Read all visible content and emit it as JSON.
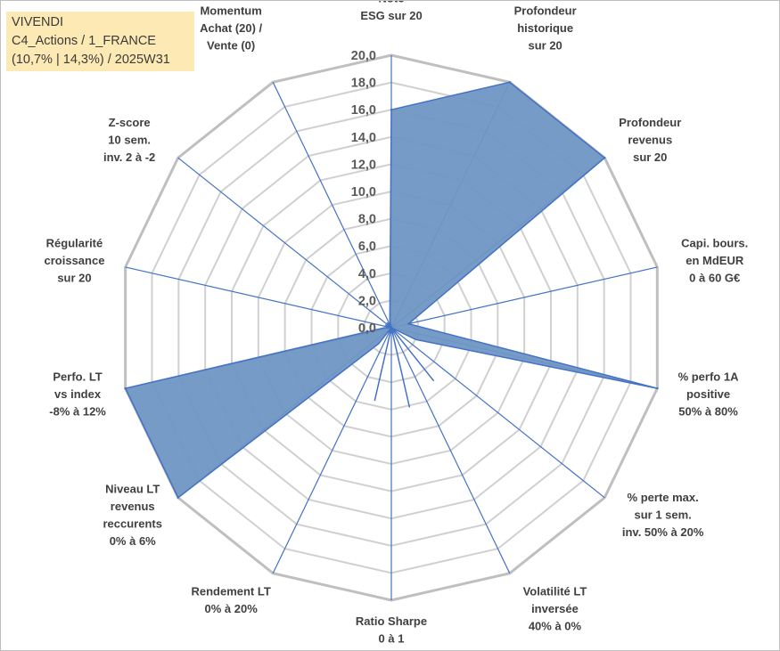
{
  "info": {
    "company": "VIVENDI",
    "portfolio": "C4_Actions / 1_FRANCE",
    "details": "(10,7% | 14,3%) / 2025W31"
  },
  "chart_data": {
    "type": "radar",
    "title": "",
    "rmax": 20,
    "tick_step": 2,
    "tick_labels": [
      "0,0",
      "2,0",
      "4,0",
      "6,0",
      "8,0",
      "10,0",
      "12,0",
      "14,0",
      "16,0",
      "18,0",
      "20,0"
    ],
    "grid_rings": 10,
    "fill_color": "#7096c4",
    "stroke_color": "#4472c4",
    "grid_color": "#d0d0d0",
    "axes": [
      {
        "label": [
          "Note",
          "ESG sur 20"
        ],
        "value": 16.0
      },
      {
        "label": [
          "Profondeur",
          "historique",
          "sur 20"
        ],
        "value": 20.0
      },
      {
        "label": [
          "Profondeur",
          "revenus",
          "sur 20"
        ],
        "value": 20.0
      },
      {
        "label": [
          "Capi. bours.",
          "en MdEUR",
          "0 à 60 G€"
        ],
        "value": 1.3
      },
      {
        "label": [
          "% perfo 1A",
          "positive",
          "50% à 80%"
        ],
        "value": 20.0
      },
      {
        "label": [
          "% perte max.",
          "sur 1 sem.",
          "inv. 50% à 20%"
        ],
        "value": 0.0
      },
      {
        "label": [
          "Volatilité LT",
          "inversée",
          "40% à 0%"
        ],
        "value": 0.0
      },
      {
        "label": [
          "Ratio Sharpe",
          "0 à 1"
        ],
        "value": 0.0
      },
      {
        "label": [
          "Rendement LT",
          "0% à 20%"
        ],
        "value": 0.0
      },
      {
        "label": [
          "Niveau LT",
          "revenus",
          "reccurents",
          "0% à 6%"
        ],
        "value": 20.0
      },
      {
        "label": [
          "Perfo. LT",
          "vs index",
          "-8% à 12%"
        ],
        "value": 20.0
      },
      {
        "label": [
          "Régularité",
          "croissance",
          "sur 20"
        ],
        "value": 0.0
      },
      {
        "label": [
          "Z-score",
          "10 sem.",
          "inv. 2 à -2"
        ],
        "value": 0.0
      },
      {
        "label": [
          "Momentum",
          "Achat (20) /",
          "Vente (0)"
        ],
        "value": 0.0
      }
    ],
    "inner_points": [
      {
        "between": [
          4,
          5
        ],
        "value": 2.0
      },
      {
        "between": [
          5,
          6
        ],
        "value": 5.0
      },
      {
        "between": [
          6,
          7
        ],
        "value": 6.0
      },
      {
        "between": [
          7,
          8
        ],
        "value": 5.5
      },
      {
        "between": [
          8,
          9
        ],
        "value": 1.5
      },
      {
        "between": [
          10,
          11
        ],
        "value": 0.5
      },
      {
        "between": [
          11,
          12
        ],
        "value": 0.5
      },
      {
        "between": [
          12,
          13
        ],
        "value": 0.5
      },
      {
        "between": [
          13,
          0
        ],
        "value": 0.5
      }
    ]
  }
}
